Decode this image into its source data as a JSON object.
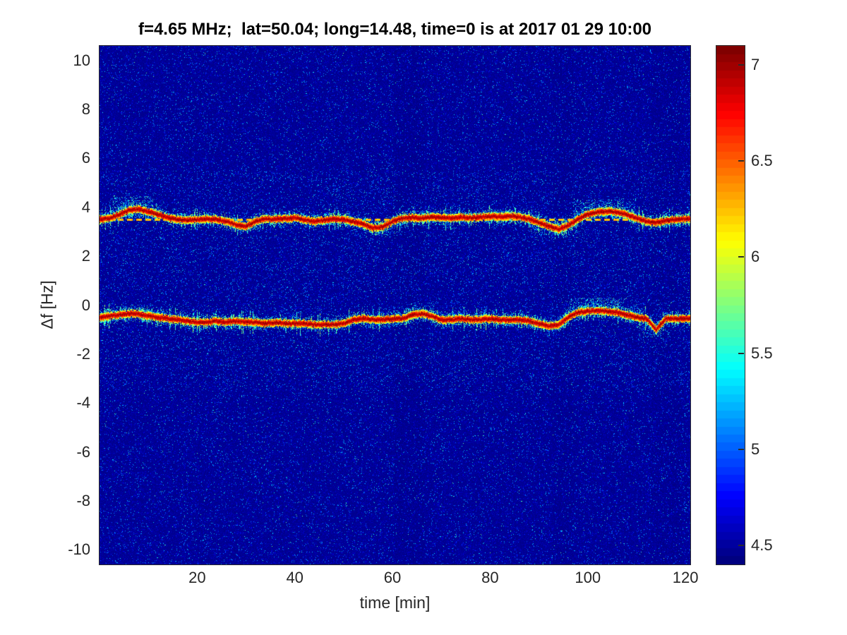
{
  "figure": {
    "background": "#ffffff",
    "text_color": "#262626",
    "axis_color": "#2b2b2b",
    "title_color": "#000000"
  },
  "chart_data": {
    "type": "heatmap",
    "subtype": "spectrogram",
    "title": "f=4.65 MHz;  lat=50.04; long=14.48, time=0 is at 2017 01 29 10:00",
    "xlabel": "time [min]",
    "ylabel": "Δf [Hz]",
    "xlim": [
      0,
      121
    ],
    "ylim": [
      -10.6,
      10.6
    ],
    "x_ticks": [
      20,
      40,
      60,
      80,
      100,
      120
    ],
    "y_ticks": [
      10,
      8,
      6,
      4,
      2,
      0,
      -2,
      -4,
      -6,
      -8,
      -10
    ],
    "grid": false,
    "colormap_colors": {
      "low": "#00008f",
      "mid": "#ffff00",
      "high": "#7f0000"
    },
    "colorbar": {
      "position": "right",
      "min": 4.4,
      "max": 7.1,
      "ticks": [
        4.5,
        5,
        5.5,
        6,
        6.5,
        7
      ],
      "colormap": "jet",
      "levels": 64
    },
    "background_level": 4.45,
    "reference_line": {
      "y": 3.48,
      "level": 6.2,
      "style": "dashed"
    },
    "series": [
      {
        "name": "upper echo trace",
        "core_level": 7.0,
        "x": [
          0,
          2,
          4,
          6,
          8,
          10,
          12,
          14,
          16,
          18,
          20,
          22,
          24,
          26,
          28,
          30,
          32,
          34,
          36,
          38,
          40,
          42,
          44,
          46,
          48,
          50,
          52,
          54,
          56,
          58,
          60,
          62,
          64,
          66,
          68,
          70,
          72,
          74,
          76,
          78,
          80,
          82,
          84,
          86,
          88,
          90,
          92,
          94,
          96,
          98,
          100,
          102,
          104,
          106,
          108,
          110,
          112,
          114,
          116,
          118,
          120
        ],
        "y": [
          3.5,
          3.55,
          3.7,
          3.88,
          3.92,
          3.82,
          3.7,
          3.58,
          3.5,
          3.47,
          3.5,
          3.53,
          3.5,
          3.42,
          3.28,
          3.22,
          3.42,
          3.53,
          3.5,
          3.53,
          3.57,
          3.5,
          3.42,
          3.47,
          3.53,
          3.5,
          3.42,
          3.32,
          3.15,
          3.2,
          3.42,
          3.55,
          3.58,
          3.55,
          3.6,
          3.58,
          3.55,
          3.6,
          3.57,
          3.6,
          3.63,
          3.6,
          3.65,
          3.6,
          3.52,
          3.38,
          3.22,
          3.1,
          3.25,
          3.52,
          3.72,
          3.8,
          3.84,
          3.8,
          3.7,
          3.55,
          3.42,
          3.37,
          3.45,
          3.5,
          3.53
        ]
      },
      {
        "name": "lower echo trace",
        "core_level": 7.0,
        "x": [
          0,
          2,
          4,
          6,
          8,
          10,
          12,
          14,
          16,
          18,
          20,
          22,
          24,
          26,
          28,
          30,
          32,
          34,
          36,
          38,
          40,
          42,
          44,
          46,
          48,
          50,
          52,
          54,
          56,
          58,
          60,
          62,
          64,
          66,
          68,
          70,
          72,
          74,
          76,
          78,
          80,
          82,
          84,
          86,
          88,
          90,
          92,
          94,
          96,
          98,
          100,
          102,
          104,
          106,
          108,
          110,
          112,
          114,
          116,
          118,
          120
        ],
        "y": [
          -0.5,
          -0.45,
          -0.4,
          -0.35,
          -0.35,
          -0.45,
          -0.5,
          -0.55,
          -0.6,
          -0.65,
          -0.7,
          -0.7,
          -0.65,
          -0.7,
          -0.65,
          -0.7,
          -0.7,
          -0.75,
          -0.7,
          -0.75,
          -0.75,
          -0.75,
          -0.8,
          -0.8,
          -0.8,
          -0.75,
          -0.6,
          -0.55,
          -0.6,
          -0.6,
          -0.55,
          -0.55,
          -0.4,
          -0.35,
          -0.45,
          -0.6,
          -0.6,
          -0.55,
          -0.6,
          -0.6,
          -0.55,
          -0.6,
          -0.6,
          -0.6,
          -0.65,
          -0.75,
          -0.85,
          -0.8,
          -0.5,
          -0.3,
          -0.25,
          -0.22,
          -0.25,
          -0.3,
          -0.4,
          -0.5,
          -0.55,
          -1.0,
          -0.55,
          -0.55,
          -0.55
        ]
      }
    ],
    "scatter_clouds": [
      {
        "t": [
          2,
          11
        ],
        "f": [
          3.55,
          4.45
        ],
        "density": 0.6
      },
      {
        "t": [
          97,
          110
        ],
        "f": [
          3.6,
          4.35
        ],
        "density": 0.35
      },
      {
        "t": [
          54,
          62
        ],
        "f": [
          2.85,
          3.35
        ],
        "density": 0.3
      },
      {
        "t": [
          88,
          98
        ],
        "f": [
          2.75,
          3.3
        ],
        "density": 0.3
      },
      {
        "t": [
          26,
          33
        ],
        "f": [
          3.0,
          3.45
        ],
        "density": 0.25
      },
      {
        "t": [
          3,
          10
        ],
        "f": [
          -0.35,
          0.05
        ],
        "density": 0.3
      },
      {
        "t": [
          63,
          69
        ],
        "f": [
          -0.35,
          0.1
        ],
        "density": 0.3
      },
      {
        "t": [
          96,
          108
        ],
        "f": [
          -0.3,
          0.3
        ],
        "density": 0.45
      },
      {
        "t": [
          110,
          117
        ],
        "f": [
          -1.3,
          -0.6
        ],
        "density": 0.25
      }
    ],
    "dark_bands": [
      [
        60.5,
        66.5,
        0.5
      ],
      [
        93,
        97,
        0.4
      ],
      [
        113,
        119,
        0.35
      ]
    ]
  }
}
